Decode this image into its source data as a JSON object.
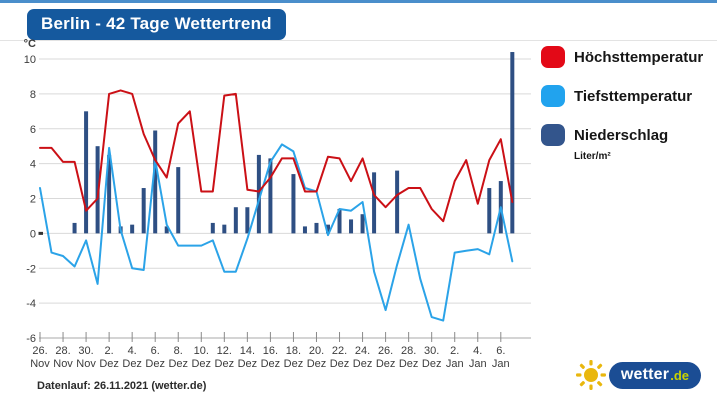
{
  "page": {
    "title_badge": "Berlin - 42 Tage Wettertrend"
  },
  "legend": {
    "items": [
      {
        "label": "Höchsttemperatur",
        "color": "#e30917"
      },
      {
        "label": "Tiefsttemperatur",
        "color": "#21a3ee"
      },
      {
        "label": "Niederschlag",
        "color": "#33558c"
      }
    ],
    "unit_label": "Liter/m²"
  },
  "footer": {
    "note": "Datenlauf: 26.11.2021 (wetter.de)",
    "logo_word": "wetter",
    "logo_tld": ".de"
  },
  "chart_data": {
    "type": "line+bar",
    "title": "Berlin - 42 Tage Wettertrend",
    "ylabel_unit": "°C",
    "ylim": [
      -6,
      10
    ],
    "yticks": [
      10,
      8,
      6,
      4,
      2,
      0,
      -2,
      -4,
      -6
    ],
    "grid": true,
    "legend_position": "right",
    "x_tick_labels": [
      {
        "day": "26.",
        "month": "Nov"
      },
      {
        "day": "28.",
        "month": "Nov"
      },
      {
        "day": "30.",
        "month": "Nov"
      },
      {
        "day": "2.",
        "month": "Dez"
      },
      {
        "day": "4.",
        "month": "Dez"
      },
      {
        "day": "6.",
        "month": "Dez"
      },
      {
        "day": "8.",
        "month": "Dez"
      },
      {
        "day": "10.",
        "month": "Dez"
      },
      {
        "day": "12.",
        "month": "Dez"
      },
      {
        "day": "14.",
        "month": "Dez"
      },
      {
        "day": "16.",
        "month": "Dez"
      },
      {
        "day": "18.",
        "month": "Dez"
      },
      {
        "day": "20.",
        "month": "Dez"
      },
      {
        "day": "22.",
        "month": "Dez"
      },
      {
        "day": "24.",
        "month": "Dez"
      },
      {
        "day": "26.",
        "month": "Dez"
      },
      {
        "day": "28.",
        "month": "Dez"
      },
      {
        "day": "30.",
        "month": "Dez"
      },
      {
        "day": "2.",
        "month": "Jan"
      },
      {
        "day": "4.",
        "month": "Jan"
      },
      {
        "day": "6.",
        "month": "Jan"
      }
    ],
    "categories": [
      "26. Nov",
      "27. Nov",
      "28. Nov",
      "29. Nov",
      "30. Nov",
      "1. Dez",
      "2. Dez",
      "3. Dez",
      "4. Dez",
      "5. Dez",
      "6. Dez",
      "7. Dez",
      "8. Dez",
      "9. Dez",
      "10. Dez",
      "11. Dez",
      "12. Dez",
      "13. Dez",
      "14. Dez",
      "15. Dez",
      "16. Dez",
      "17. Dez",
      "18. Dez",
      "19. Dez",
      "20. Dez",
      "21. Dez",
      "22. Dez",
      "23. Dez",
      "24. Dez",
      "25. Dez",
      "26. Dez",
      "27. Dez",
      "28. Dez",
      "29. Dez",
      "30. Dez",
      "31. Dez",
      "1. Jan",
      "2. Jan",
      "3. Jan",
      "4. Jan",
      "5. Jan",
      "6. Jan"
    ],
    "series": [
      {
        "name": "Höchsttemperatur",
        "type": "line",
        "color": "#cb1016",
        "unit": "°C",
        "values": [
          4.9,
          4.9,
          4.1,
          4.1,
          1.3,
          2.0,
          8.0,
          8.2,
          8.0,
          5.7,
          4.2,
          3.2,
          6.3,
          7.0,
          2.4,
          2.4,
          7.9,
          8.0,
          2.5,
          2.4,
          3.2,
          4.3,
          4.3,
          2.4,
          2.4,
          4.4,
          4.3,
          3.0,
          4.3,
          2.2,
          1.5,
          2.2,
          2.6,
          2.6,
          1.4,
          0.7,
          3.0,
          4.2,
          1.7,
          4.2,
          5.4,
          1.8
        ]
      },
      {
        "name": "Tiefsttemperatur",
        "type": "line",
        "color": "#2ba3e8",
        "unit": "°C",
        "values": [
          2.6,
          -1.1,
          -1.3,
          -1.9,
          -0.4,
          -2.9,
          4.9,
          0.2,
          -2.0,
          -2.1,
          4.2,
          0.5,
          -0.7,
          -0.7,
          -0.7,
          -0.4,
          -2.2,
          -2.2,
          -0.3,
          1.9,
          4.1,
          5.1,
          4.7,
          2.6,
          2.4,
          -0.1,
          1.4,
          1.3,
          1.8,
          -2.2,
          -4.4,
          -1.8,
          0.5,
          -2.6,
          -4.8,
          -5.0,
          -1.1,
          -1.0,
          -0.9,
          -1.2,
          1.5,
          -1.6
        ]
      },
      {
        "name": "Niederschlag",
        "type": "bar",
        "color": "#2e4f83",
        "unit": "Liter/m²",
        "values": [
          0,
          0,
          0,
          0.6,
          7.0,
          5.0,
          4.5,
          0.4,
          0.5,
          2.6,
          5.9,
          0.4,
          3.8,
          0,
          0,
          0.6,
          0.5,
          1.5,
          1.5,
          4.5,
          4.3,
          0,
          3.4,
          0.4,
          0.6,
          0.5,
          1.4,
          0.8,
          1.1,
          3.5,
          0,
          3.6,
          0,
          0,
          0,
          0,
          0,
          0,
          0,
          2.6,
          3.0,
          10.4
        ]
      }
    ]
  }
}
